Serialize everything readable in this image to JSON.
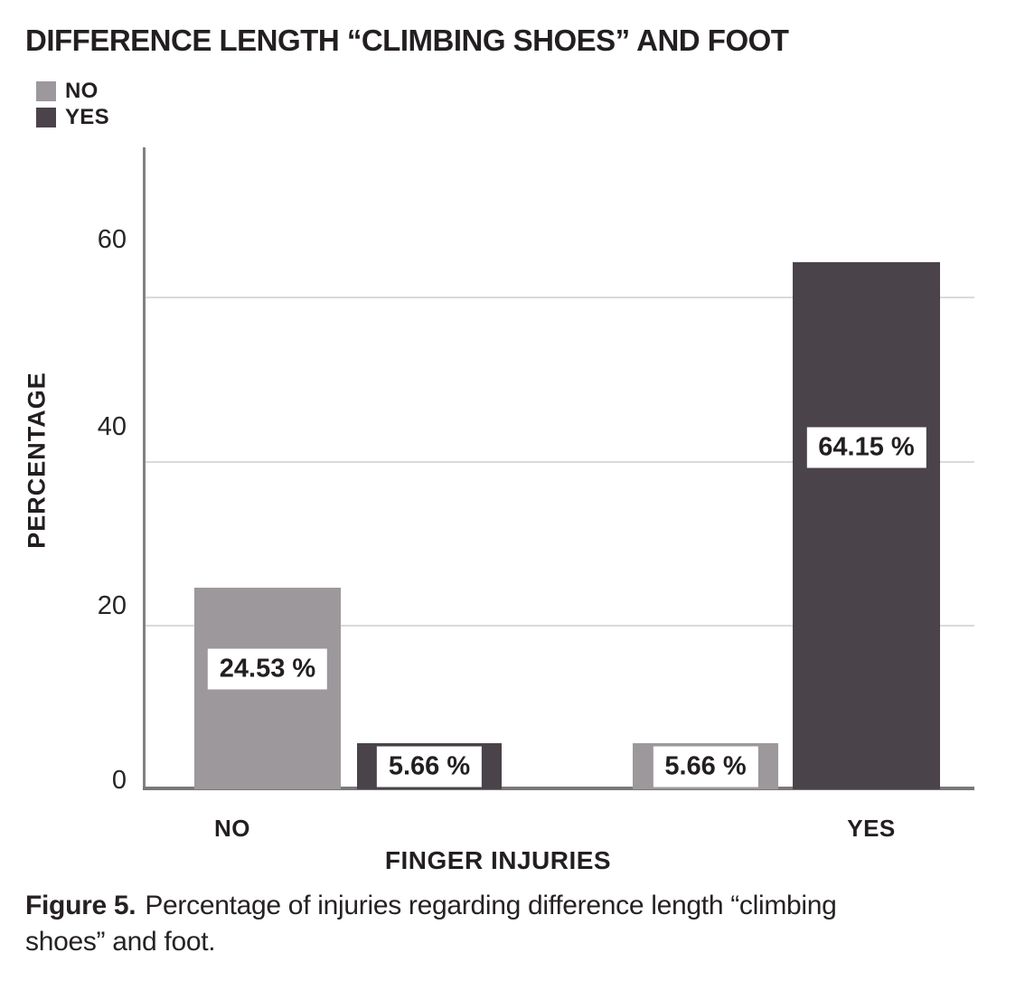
{
  "figure": {
    "caption": {
      "label": "Figure 5.",
      "line1": "Percentage of injuries regarding difference length “climbing",
      "line2": "shoes” and foot."
    }
  },
  "chart_data": {
    "type": "bar",
    "title": "DIFFERENCE LENGTH “CLIMBING SHOES” AND FOOT",
    "xlabel": "FINGER INJURIES",
    "ylabel": "PERCENTAGE",
    "categories": [
      "NO",
      "YES"
    ],
    "series": [
      {
        "name": "NO",
        "color": "#9c989c",
        "values": [
          24.53,
          5.66
        ]
      },
      {
        "name": "YES",
        "color": "#4a4349",
        "values": [
          5.66,
          64.15
        ]
      }
    ],
    "value_labels": [
      [
        "24.53 %",
        "5.66 %"
      ],
      [
        "5.66 %",
        "64.15 %"
      ]
    ],
    "yticks": [
      "0",
      "20",
      "40",
      "60"
    ],
    "ylim": [
      0,
      78
    ],
    "grid": "horizontal",
    "legend_position": "top-left",
    "colors": {
      "text": "#231f20",
      "grid": "#dadada",
      "axis": "#828082",
      "baseline": "#7b777b",
      "label_box_bg": "#ffffff",
      "figure_label_blue": "#2087bc"
    }
  }
}
